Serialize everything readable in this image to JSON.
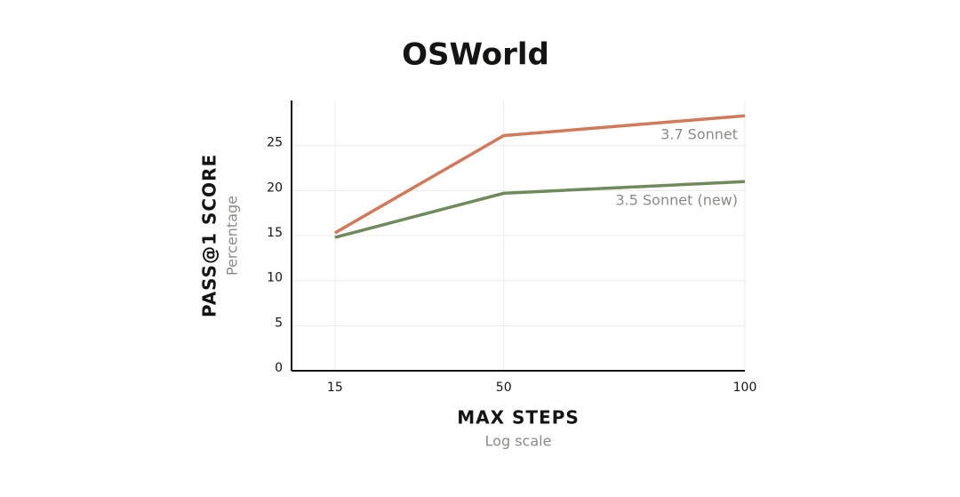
{
  "chart_data": {
    "type": "line",
    "title": "OSWorld",
    "y_label": "PASS@1 SCORE",
    "y_sublabel": "Percentage",
    "x_label": "MAX STEPS",
    "x_sublabel": "Log scale",
    "x": [
      15,
      50,
      100
    ],
    "series": [
      {
        "name": "3.7 Sonnet",
        "color": "#d4785a",
        "values": [
          15.3,
          26.1,
          28.3
        ]
      },
      {
        "name": "3.5 Sonnet (new)",
        "color": "#6f8a5c",
        "values": [
          14.8,
          19.7,
          21.0
        ]
      }
    ],
    "xlim": [
      6,
      100
    ],
    "xticks": [
      15,
      50,
      100
    ],
    "ylim": [
      0,
      30
    ],
    "yticks": [
      0,
      5,
      10,
      15,
      20,
      25
    ],
    "grid": true
  }
}
